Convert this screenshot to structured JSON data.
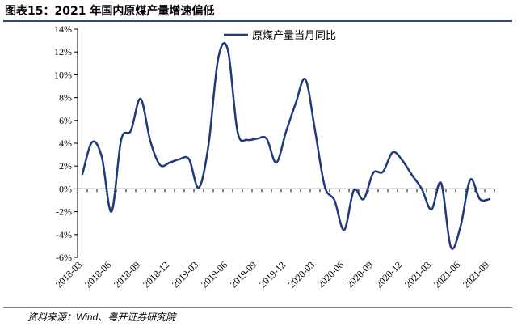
{
  "header": {
    "title": "图表15：2021 年国内原煤产量增速偏低"
  },
  "footer": {
    "source": "资料来源：Wind、粤开证券研究院"
  },
  "colors": {
    "series": "#1f3a7a",
    "axis": "#000000",
    "rule": "#2e4a86"
  },
  "chart_data": {
    "type": "line",
    "title": "",
    "xlabel": "",
    "ylabel": "",
    "ylim": [
      -6,
      14
    ],
    "y_ticks": [
      14,
      12,
      10,
      8,
      6,
      4,
      2,
      0,
      -2,
      -4,
      -6
    ],
    "y_tick_labels": [
      "14%",
      "12%",
      "10%",
      "8%",
      "6%",
      "4%",
      "2%",
      "0%",
      "-2%",
      "-4%",
      "-6%"
    ],
    "y_unit": "%",
    "x_tick_labels": [
      "2018-03",
      "2018-06",
      "2018-09",
      "2018-12",
      "2019-03",
      "2019-06",
      "2019-09",
      "2019-12",
      "2020-03",
      "2020-06",
      "2020-09",
      "2020-12",
      "2021-03",
      "2021-06",
      "2021-09"
    ],
    "grid": false,
    "legend_position": "top-center",
    "series": [
      {
        "name": "原煤产量当月同比",
        "x": [
          "2018-03",
          "2018-04",
          "2018-05",
          "2018-06",
          "2018-07",
          "2018-08",
          "2018-09",
          "2018-10",
          "2018-11",
          "2018-12",
          "2019-01",
          "2019-02",
          "2019-03",
          "2019-04",
          "2019-05",
          "2019-06",
          "2019-07",
          "2019-08",
          "2019-09",
          "2019-10",
          "2019-11",
          "2019-12",
          "2020-01",
          "2020-02",
          "2020-03",
          "2020-04",
          "2020-05",
          "2020-06",
          "2020-07",
          "2020-08",
          "2020-09",
          "2020-10",
          "2020-11",
          "2020-12",
          "2021-01",
          "2021-02",
          "2021-03",
          "2021-04",
          "2021-05",
          "2021-06",
          "2021-07",
          "2021-08",
          "2021-09"
        ],
        "values": [
          1.3,
          4.1,
          2.8,
          -2.0,
          4.3,
          5.1,
          7.9,
          4.2,
          2.1,
          2.3,
          2.6,
          2.6,
          0.1,
          3.8,
          11.4,
          12.2,
          5.0,
          4.3,
          4.4,
          4.4,
          2.3,
          5.0,
          7.5,
          9.6,
          5.1,
          0.2,
          -1.0,
          -3.6,
          -0.1,
          -0.9,
          1.4,
          1.5,
          3.2,
          2.5,
          1.2,
          0.0,
          -1.8,
          0.5,
          -5.1,
          -3.3,
          0.8,
          -0.9,
          -0.9
        ]
      }
    ]
  }
}
